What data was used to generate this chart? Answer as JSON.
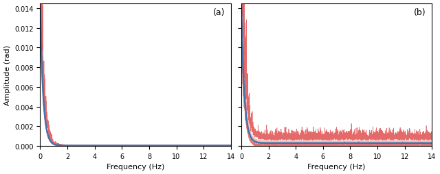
{
  "title_a": "(a)",
  "title_b": "(b)",
  "xlabel": "Frequency (Hz)",
  "ylabel": "Amplitude (rad)",
  "xlim": [
    0,
    14
  ],
  "ylim_a": [
    0,
    0.0145
  ],
  "ylim_b": [
    0,
    0.0145
  ],
  "yticks_a": [
    0.0,
    0.002,
    0.004,
    0.006,
    0.008,
    0.01,
    0.012,
    0.014
  ],
  "xticks": [
    0,
    2,
    4,
    6,
    8,
    10,
    12,
    14
  ],
  "blue_color": "#4472a8",
  "red_color": "#e05050",
  "red_fill_color": "#f0b0b0",
  "background_color": "#ffffff",
  "seed": 7,
  "n_points": 3000,
  "freq_max": 14.0,
  "panel_a": {
    "base_amp": 0.014,
    "decay": 4.5,
    "residual_blue": 5e-05,
    "residual_red": 8e-05,
    "noise_band_scale": 0.5,
    "noise_spike_scale": 0.6,
    "noise_persist": 0.0
  },
  "panel_b": {
    "base_amp": 0.014,
    "decay": 4.5,
    "residual_blue": 0.0003,
    "residual_red": 0.0004,
    "noise_band_scale": 0.9,
    "noise_spike_scale": 1.0,
    "noise_persist": 0.00045
  }
}
